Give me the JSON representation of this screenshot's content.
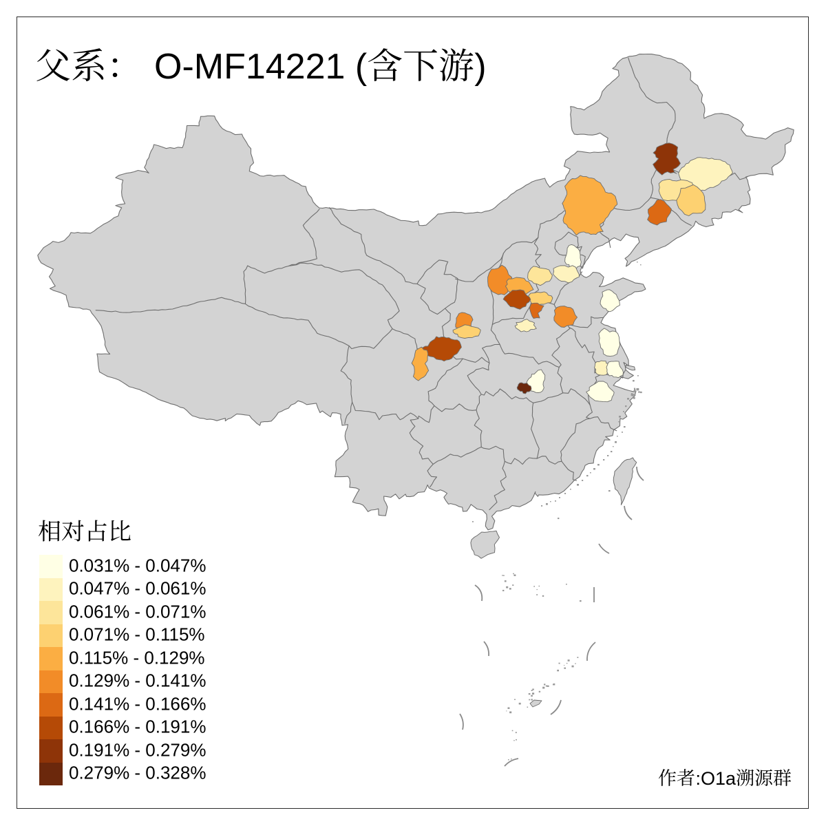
{
  "figure": {
    "type": "choropleth-map",
    "region": "China",
    "background": "#FFFFFF",
    "frame_color": "#2b2b2b"
  },
  "title": {
    "text": "父系： O-MF14221 (含下游)",
    "cjk_prefix": "父系：",
    "latin": "O-MF14221 (",
    "cjk_infix": "含下游",
    "close_paren": ")"
  },
  "legend": {
    "title": "相对占比",
    "classes": [
      {
        "label": "0.031% - 0.047%",
        "color": "#FFFFE5"
      },
      {
        "label": "0.047% - 0.061%",
        "color": "#FEF3BE"
      },
      {
        "label": "0.061% - 0.071%",
        "color": "#FDE59A"
      },
      {
        "label": "0.071% - 0.115%",
        "color": "#FDD171"
      },
      {
        "label": "0.115% - 0.129%",
        "color": "#FBAE43"
      },
      {
        "label": "0.129% - 0.141%",
        "color": "#F28C28"
      },
      {
        "label": "0.141% - 0.166%",
        "color": "#DC6914"
      },
      {
        "label": "0.166% - 0.191%",
        "color": "#B54A06"
      },
      {
        "label": "0.191% - 0.279%",
        "color": "#8E3408"
      },
      {
        "label": "0.279% - 0.328%",
        "color": "#6B280C"
      }
    ]
  },
  "author": {
    "text": "作者:O1a溯源群",
    "cjk_prefix": "作者",
    "latin": ":O1a",
    "cjk_suffix": "溯源群"
  },
  "map": {
    "land_fill": "#D3D3D3",
    "border_color": "#6E6E6E",
    "patches": [
      {
        "class": 9
      },
      {
        "class": 2
      },
      {
        "class": 3
      },
      {
        "class": 4
      },
      {
        "class": 7
      },
      {
        "class": 5
      },
      {
        "class": 1
      },
      {
        "class": 2
      },
      {
        "class": 3
      },
      {
        "class": 4
      },
      {
        "class": 7
      },
      {
        "class": 6
      },
      {
        "class": 1
      },
      {
        "class": 6
      },
      {
        "class": 5
      },
      {
        "class": 8
      },
      {
        "class": 2
      },
      {
        "class": 6
      },
      {
        "class": 4
      },
      {
        "class": 8
      },
      {
        "class": 5
      },
      {
        "class": 1
      },
      {
        "class": 10
      },
      {
        "class": 1
      },
      {
        "class": 2
      },
      {
        "class": 1
      },
      {
        "class": 1
      }
    ]
  }
}
